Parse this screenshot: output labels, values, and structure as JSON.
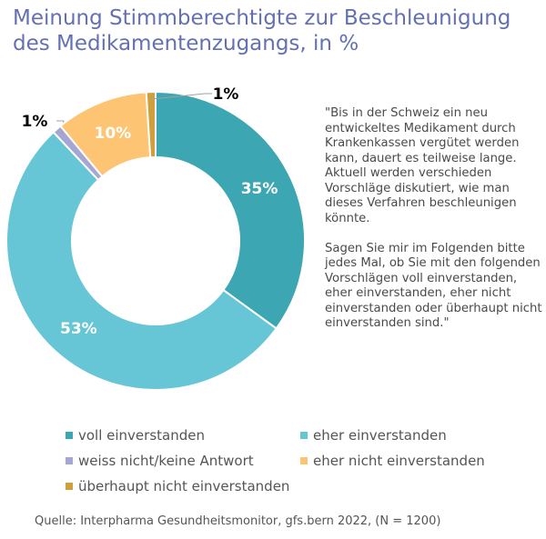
{
  "title": {
    "line1": "Meinung Stimmberechtigte zur Beschleunigung",
    "line2": "des Medikamentenzugangs, in %"
  },
  "question": {
    "paragraph1": "\"Bis in der Schweiz ein neu entwickeltes Medikament durch Krankenkassen vergütet werden kann, dauert es teilweise lange. Aktuell werden verschieden Vorschläge diskutiert, wie man dieses Verfahren beschleunigen könnte.",
    "paragraph2": "Sagen Sie mir im Folgenden bitte jedes Mal, ob Sie mit den folgenden Vorschlägen voll einverstanden, eher einverstanden, eher nicht einverstanden oder überhaupt nicht einverstanden sind.\""
  },
  "source": "Quelle:  Interpharma Gesundheitsmonitor, gfs.bern 2022, (N = 1200)",
  "chart_data": {
    "type": "pie",
    "donut": true,
    "title": "Meinung Stimmberechtigte zur Beschleunigung des Medikamentenzugangs, in %",
    "start": "top",
    "direction": "clockwise",
    "legend_position": "bottom",
    "slices": [
      {
        "label": "voll einverstanden",
        "value": 35,
        "data_label": "35%",
        "color": "#3ca6b2",
        "label_color": "#ffffff",
        "outside": false
      },
      {
        "label": "eher einverstanden",
        "value": 53,
        "data_label": "53%",
        "color": "#66c6d6",
        "label_color": "#ffffff",
        "outside": false
      },
      {
        "label": "weiss nicht/keine Antwort",
        "value": 1,
        "data_label": "1%",
        "color": "#a6a6d4",
        "label_color": "#000000",
        "outside": true
      },
      {
        "label": "eher nicht einverstanden",
        "value": 10,
        "data_label": "10%",
        "color": "#fdc474",
        "label_color": "#ffffff",
        "outside": false
      },
      {
        "label": "überhaupt nicht einverstanden",
        "value": 1,
        "data_label": "1%",
        "color": "#d09f3c",
        "label_color": "#000000",
        "outside": true
      }
    ]
  }
}
